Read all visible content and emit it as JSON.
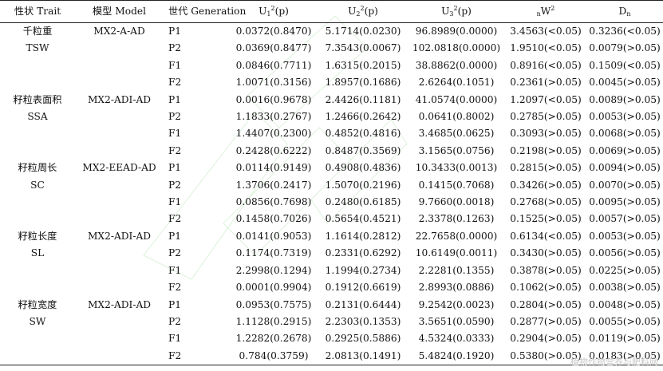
{
  "headers": {
    "trait": "性状 Trait",
    "model": "模型 Model",
    "generation": "世代 Generation",
    "u1_base": "U",
    "u1_sub": "1",
    "u1_sup": "2",
    "u1_tail": "(p)",
    "u2_base": "U",
    "u2_sub": "2",
    "u2_sup": "2",
    "u2_tail": "(p)",
    "u3_base": "U",
    "u3_sub": "3",
    "u3_sup": "2",
    "u3_tail": "(p)",
    "nw_pre": "n",
    "nw_base": "W",
    "nw_sup": "2",
    "dn_base": "D",
    "dn_sub": "n"
  },
  "groups": [
    {
      "trait_cn": "千粒重",
      "trait_en": "TSW",
      "model": "MX2-A-AD",
      "rows": [
        [
          "P1",
          "0.0372(0.8470)",
          "5.1714(0.0230)",
          "96.8989(0.0000)",
          "3.4563(<0.05)",
          "0.3236(<0.05)"
        ],
        [
          "P2",
          "0.0369(0.8477)",
          "7.3543(0.0067)",
          "102.0818(0.0000)",
          "1.9510(<0.05)",
          "0.0079(>0.05)"
        ],
        [
          "F1",
          "0.0846(0.7711)",
          "1.6315(0.2015)",
          "38.8862(0.0000)",
          "0.8916(<0.05)",
          "0.1509(<0.05)"
        ],
        [
          "F2",
          "1.0071(0.3156)",
          "1.8957(0.1686)",
          "2.6264(0.1051)",
          "0.2361(>0.05)",
          "0.0045(>0.05)"
        ]
      ]
    },
    {
      "trait_cn": "籽粒表面积",
      "trait_en": "SSA",
      "model": "MX2-ADI-AD",
      "rows": [
        [
          "P1",
          "0.0016(0.9678)",
          "2.4426(0.1181)",
          "41.0574(0.0000)",
          "1.2097(<0.05)",
          "0.0089(>0.05)"
        ],
        [
          "P2",
          "1.1833(0.2767)",
          "1.2466(0.2642)",
          "0.0641(0.8002)",
          "0.2785(>0.05)",
          "0.0053(>0.05)"
        ],
        [
          "F1",
          "1.4407(0.2300)",
          "0.4852(0.4816)",
          "3.4685(0.0625)",
          "0.3093(>0.05)",
          "0.0068(>0.05)"
        ],
        [
          "F2",
          "0.2428(0.6222)",
          "0.8487(0.3569)",
          "3.1565(0.0756)",
          "0.2198(>0.05)",
          "0.0069(>0.05)"
        ]
      ]
    },
    {
      "trait_cn": "籽粒周长",
      "trait_en": "SC",
      "model": "MX2-EEAD-AD",
      "rows": [
        [
          "P1",
          "0.0114(0.9149)",
          "0.4908(0.4836)",
          "10.3433(0.0013)",
          "0.2815(>0.05)",
          "0.0094(>0.05)"
        ],
        [
          "P2",
          "1.3706(0.2417)",
          "1.5070(0.2196)",
          "0.1415(0.7068)",
          "0.3426(>0.05)",
          "0.0070(>0.05)"
        ],
        [
          "F1",
          "0.0856(0.7698)",
          "0.2480(0.6185)",
          "9.7660(0.0018)",
          "0.2768(>0.05)",
          "0.0095(>0.05)"
        ],
        [
          "F2",
          "0.1458(0.7026)",
          "0.5654(0.4521)",
          "2.3378(0.1263)",
          "0.1525(>0.05)",
          "0.0057(>0.05)"
        ]
      ]
    },
    {
      "trait_cn": "籽粒长度",
      "trait_en": "SL",
      "model": "MX2-ADI-AD",
      "rows": [
        [
          "P1",
          "0.0141(0.9053)",
          "1.1614(0.2812)",
          "22.7658(0.0000)",
          "0.6134(<0.05)",
          "0.0053(>0.05)"
        ],
        [
          "P2",
          "0.1174(0.7319)",
          "0.2331(0.6292)",
          "10.6149(0.0011)",
          "0.3430(>0.05)",
          "0.0056(>0.05)"
        ],
        [
          "F1",
          "2.2998(0.1294)",
          "1.1994(0.2734)",
          "2.2281(0.1355)",
          "0.3878(>0.05)",
          "0.0225(>0.05)"
        ],
        [
          "F2",
          "0.0001(0.9904)",
          "0.1912(0.6619)",
          "2.8993(0.0886)",
          "0.1062(>0.05)",
          "0.0038(>0.05)"
        ]
      ]
    },
    {
      "trait_cn": "籽粒宽度",
      "trait_en": "SW",
      "model": "MX2-ADI-AD",
      "rows": [
        [
          "P1",
          "0.0953(0.7575)",
          "0.2131(0.6444)",
          "9.2542(0.0023)",
          "0.2804(>0.05)",
          "0.0048(>0.05)"
        ],
        [
          "P2",
          "1.1128(0.2915)",
          "2.2303(0.1353)",
          "3.5651(0.0590)",
          "0.2877(>0.05)",
          "0.0055(>0.05)"
        ],
        [
          "F1",
          "1.2282(0.2678)",
          "0.2925(0.5886)",
          "4.5324(0.0333)",
          "0.2904(>0.05)",
          "0.0119(>0.05)"
        ],
        [
          "F2",
          "0.784(0.3759)",
          "2.0813(0.1491)",
          "5.4824(0.1920)",
          "0.5380(>0.05)",
          "0.0183(>0.05)"
        ]
      ]
    }
  ],
  "watermark": "植物作物营养与肥料网"
}
